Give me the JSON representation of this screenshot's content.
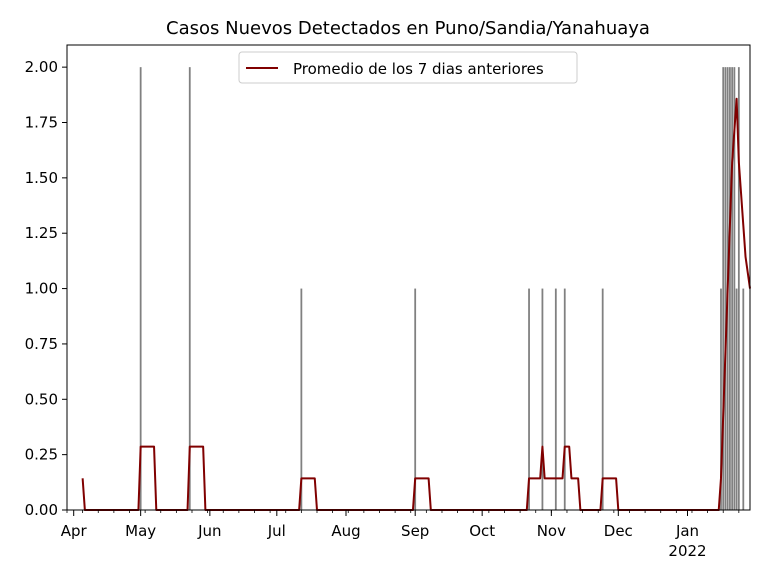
{
  "chart_data": {
    "type": "bar+line",
    "title": "Casos Nuevos Detectados en Puno/Sandia/Yanahuaya",
    "xlabel": "",
    "ylabel": "",
    "ylim": [
      0,
      2.1
    ],
    "xlim": [
      "2021-03-29",
      "2022-01-29"
    ],
    "y_ticks": [
      "0.00",
      "0.25",
      "0.50",
      "0.75",
      "1.00",
      "1.25",
      "1.50",
      "1.75",
      "2.00"
    ],
    "x_ticks": [
      {
        "date": "2021-04-01",
        "label": "Apr",
        "sublabel": ""
      },
      {
        "date": "2021-05-01",
        "label": "May",
        "sublabel": ""
      },
      {
        "date": "2021-06-01",
        "label": "Jun",
        "sublabel": ""
      },
      {
        "date": "2021-07-01",
        "label": "Jul",
        "sublabel": ""
      },
      {
        "date": "2021-08-01",
        "label": "Aug",
        "sublabel": ""
      },
      {
        "date": "2021-09-01",
        "label": "Sep",
        "sublabel": ""
      },
      {
        "date": "2021-10-01",
        "label": "Oct",
        "sublabel": ""
      },
      {
        "date": "2021-11-01",
        "label": "Nov",
        "sublabel": ""
      },
      {
        "date": "2021-12-01",
        "label": "Dec",
        "sublabel": ""
      },
      {
        "date": "2022-01-01",
        "label": "Jan",
        "sublabel": "2022"
      }
    ],
    "legend": {
      "position": "top-center",
      "entries": [
        "Promedio de los 7 dias anteriores"
      ]
    },
    "colors": {
      "bars": "#808080",
      "line": "#800000"
    },
    "bars": [
      {
        "date": "2021-05-01",
        "value": 2
      },
      {
        "date": "2021-05-23",
        "value": 2
      },
      {
        "date": "2021-07-12",
        "value": 1
      },
      {
        "date": "2021-09-01",
        "value": 1
      },
      {
        "date": "2021-10-22",
        "value": 1
      },
      {
        "date": "2021-10-28",
        "value": 1
      },
      {
        "date": "2021-11-03",
        "value": 1
      },
      {
        "date": "2021-11-07",
        "value": 1
      },
      {
        "date": "2021-11-24",
        "value": 1
      },
      {
        "date": "2022-01-16",
        "value": 1
      },
      {
        "date": "2022-01-17",
        "value": 2
      },
      {
        "date": "2022-01-18",
        "value": 2
      },
      {
        "date": "2022-01-19",
        "value": 2
      },
      {
        "date": "2022-01-20",
        "value": 2
      },
      {
        "date": "2022-01-21",
        "value": 2
      },
      {
        "date": "2022-01-22",
        "value": 2
      },
      {
        "date": "2022-01-23",
        "value": 1
      },
      {
        "date": "2022-01-24",
        "value": 2
      },
      {
        "date": "2022-01-26",
        "value": 1
      }
    ],
    "series": [
      {
        "name": "Promedio de los 7 dias anteriores",
        "points": [
          [
            "2021-04-05",
            0.143
          ],
          [
            "2021-04-06",
            0
          ],
          [
            "2021-04-30",
            0
          ],
          [
            "2021-05-01",
            0.286
          ],
          [
            "2021-05-07",
            0.286
          ],
          [
            "2021-05-08",
            0
          ],
          [
            "2021-05-22",
            0
          ],
          [
            "2021-05-23",
            0.286
          ],
          [
            "2021-05-29",
            0.286
          ],
          [
            "2021-05-30",
            0
          ],
          [
            "2021-07-11",
            0
          ],
          [
            "2021-07-12",
            0.143
          ],
          [
            "2021-07-18",
            0.143
          ],
          [
            "2021-07-19",
            0
          ],
          [
            "2021-08-31",
            0
          ],
          [
            "2021-09-01",
            0.143
          ],
          [
            "2021-09-07",
            0.143
          ],
          [
            "2021-09-08",
            0
          ],
          [
            "2021-10-21",
            0
          ],
          [
            "2021-10-22",
            0.143
          ],
          [
            "2021-10-27",
            0.143
          ],
          [
            "2021-10-28",
            0.286
          ],
          [
            "2021-10-29",
            0.143
          ],
          [
            "2021-11-06",
            0.143
          ],
          [
            "2021-11-07",
            0.286
          ],
          [
            "2021-11-09",
            0.286
          ],
          [
            "2021-11-10",
            0.143
          ],
          [
            "2021-11-13",
            0.143
          ],
          [
            "2021-11-14",
            0
          ],
          [
            "2021-11-23",
            0
          ],
          [
            "2021-11-24",
            0.143
          ],
          [
            "2021-11-30",
            0.143
          ],
          [
            "2021-12-01",
            0
          ],
          [
            "2022-01-15",
            0
          ],
          [
            "2022-01-16",
            0.143
          ],
          [
            "2022-01-17",
            0.429
          ],
          [
            "2022-01-18",
            0.714
          ],
          [
            "2022-01-19",
            1.0
          ],
          [
            "2022-01-20",
            1.286
          ],
          [
            "2022-01-21",
            1.571
          ],
          [
            "2022-01-22",
            1.714
          ],
          [
            "2022-01-23",
            1.857
          ],
          [
            "2022-01-24",
            1.571
          ],
          [
            "2022-01-25",
            1.429
          ],
          [
            "2022-01-26",
            1.286
          ],
          [
            "2022-01-27",
            1.143
          ],
          [
            "2022-01-29",
            1.0
          ]
        ]
      }
    ]
  }
}
